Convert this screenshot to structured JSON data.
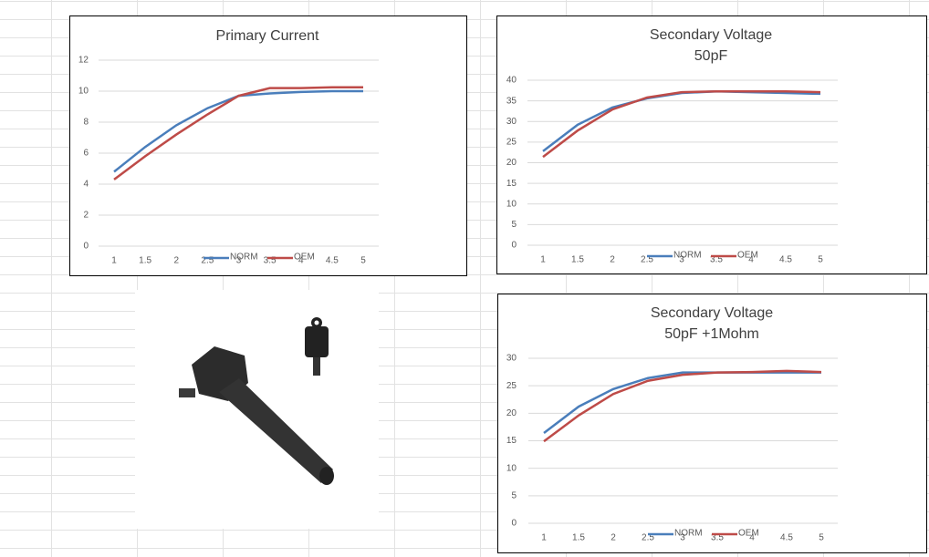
{
  "chart_data": [
    {
      "type": "line",
      "title": [
        "Primary Current"
      ],
      "x": [
        1,
        1.5,
        2,
        2.5,
        3,
        3.5,
        4,
        4.5,
        5
      ],
      "xlim": [
        1,
        5
      ],
      "series": [
        {
          "name": "NORM",
          "color": "#4a7ebb",
          "values": [
            4.8,
            6.4,
            7.8,
            8.9,
            9.7,
            9.85,
            9.95,
            10,
            10
          ]
        },
        {
          "name": "OEM",
          "color": "#be4b48",
          "values": [
            4.3,
            5.8,
            7.2,
            8.5,
            9.7,
            10.2,
            10.2,
            10.25,
            10.25
          ]
        }
      ],
      "ylim": [
        0,
        12
      ],
      "yticks": [
        0,
        2,
        4,
        6,
        8,
        10,
        12
      ],
      "grid": true,
      "legend": "bottom"
    },
    {
      "type": "line",
      "title": [
        "Secondary Voltage",
        "50pF"
      ],
      "x": [
        1,
        1.5,
        2,
        2.5,
        3,
        3.5,
        4,
        4.5,
        5
      ],
      "xlim": [
        1,
        5
      ],
      "series": [
        {
          "name": "NORM",
          "color": "#4a7ebb",
          "values": [
            22.8,
            29.2,
            33.4,
            35.6,
            36.9,
            37.3,
            37.1,
            36.9,
            36.7
          ]
        },
        {
          "name": "OEM",
          "color": "#be4b48",
          "values": [
            21.4,
            27.8,
            32.9,
            35.8,
            37.1,
            37.3,
            37.3,
            37.3,
            37.1
          ]
        }
      ],
      "ylim": [
        0,
        40
      ],
      "yticks": [
        0,
        5,
        10,
        15,
        20,
        25,
        30,
        35,
        40
      ],
      "grid": true,
      "legend": "bottom"
    },
    {
      "type": "line",
      "title": [
        "Secondary Voltage",
        "50pF +1Mohm"
      ],
      "x": [
        1,
        1.5,
        2,
        2.5,
        3,
        3.5,
        4,
        4.5,
        5
      ],
      "xlim": [
        1,
        5
      ],
      "series": [
        {
          "name": "NORM",
          "color": "#4a7ebb",
          "values": [
            16.4,
            21.2,
            24.4,
            26.4,
            27.4,
            27.4,
            27.4,
            27.4,
            27.4
          ]
        },
        {
          "name": "OEM",
          "color": "#be4b48",
          "values": [
            14.9,
            19.6,
            23.5,
            25.9,
            27,
            27.4,
            27.5,
            27.7,
            27.5
          ]
        }
      ],
      "ylim": [
        0,
        30
      ],
      "yticks": [
        0,
        5,
        10,
        15,
        20,
        25,
        30
      ],
      "grid": true,
      "legend": "bottom"
    }
  ]
}
